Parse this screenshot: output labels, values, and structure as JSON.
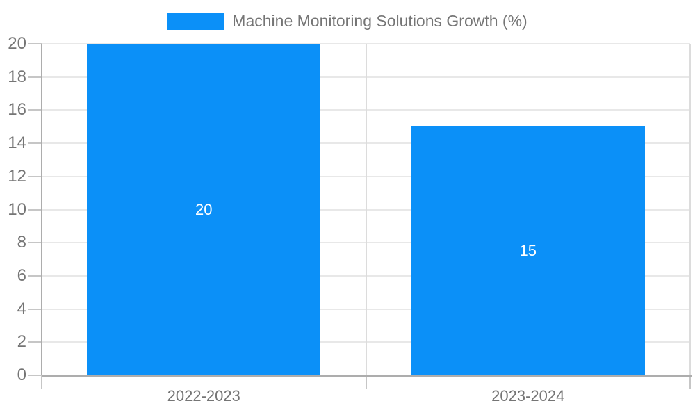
{
  "legend": {
    "label": "Machine Monitoring Solutions Growth (%)",
    "position": "top"
  },
  "chart_data": {
    "type": "bar",
    "title": "",
    "xlabel": "",
    "ylabel": "",
    "categories": [
      "2022-2023",
      "2023-2024"
    ],
    "series": [
      {
        "name": "Machine Monitoring Solutions Growth (%)",
        "values": [
          20,
          15
        ]
      }
    ],
    "bar_labels": [
      "20",
      "15"
    ],
    "ylim": [
      0,
      20
    ],
    "ytick_step": 2,
    "yticks": [
      0,
      2,
      4,
      6,
      8,
      10,
      12,
      14,
      16,
      18,
      20
    ],
    "grid": true,
    "legend_position": "top"
  },
  "colors": {
    "bar": "#0b90f8",
    "legend_text": "#757575",
    "tick_label": "#757575",
    "bar_label": "#ffffff",
    "axis_line": "#adadad",
    "tick_line": "#c6c6c6",
    "gridline_h": "#e8e8e8",
    "gridline_v": "#dcdcdc",
    "background": "#ffffff"
  }
}
